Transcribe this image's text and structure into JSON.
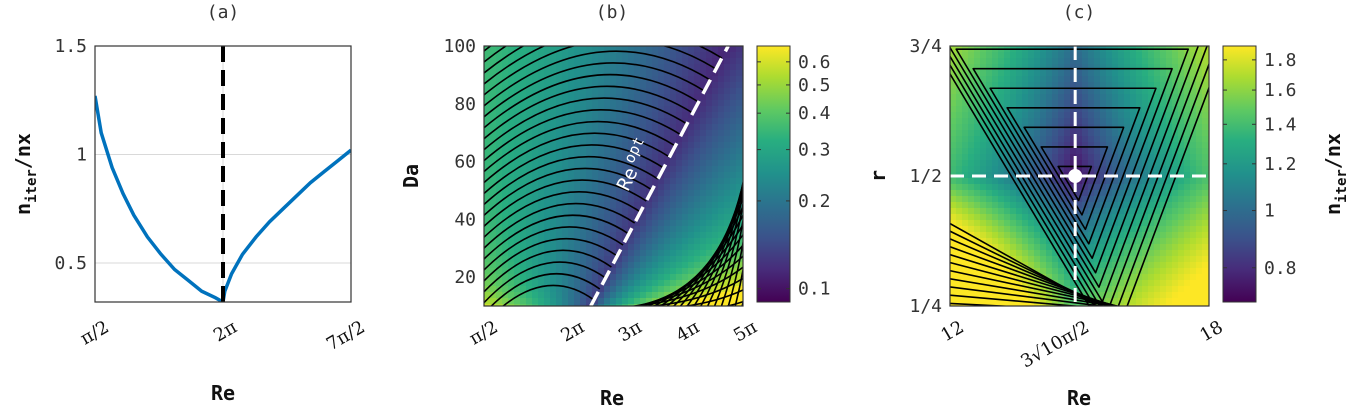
{
  "chart_data": [
    {
      "type": "line",
      "title": "(a)",
      "xlabel": "Re",
      "ylabel_main": "n",
      "ylabel_sub": "iter",
      "ylabel_tail": "/nx",
      "x_tick_labels": [
        "π/2",
        "2π",
        "7π/2"
      ],
      "x_tick_values": [
        1.5708,
        6.2832,
        10.9956
      ],
      "y_tick_labels": [
        "0.5",
        "1",
        "1.5"
      ],
      "y_tick_values": [
        0.5,
        1,
        1.5
      ],
      "xlim": [
        1.5708,
        10.9956
      ],
      "ylim": [
        0.32,
        1.5
      ],
      "grid": true,
      "vline": {
        "x": 6.2832,
        "style": "dashed",
        "color": "#000000"
      },
      "series": [
        {
          "color": "#0072BD",
          "points": [
            [
              1.5708,
              1.27
            ],
            [
              1.8,
              1.1
            ],
            [
              2.2,
              0.94
            ],
            [
              2.6,
              0.82
            ],
            [
              3.0,
              0.72
            ],
            [
              3.5,
              0.62
            ],
            [
              4.0,
              0.54
            ],
            [
              4.5,
              0.47
            ],
            [
              5.0,
              0.42
            ],
            [
              5.5,
              0.37
            ],
            [
              6.0,
              0.34
            ],
            [
              6.2832,
              0.32
            ],
            [
              6.35,
              0.37
            ],
            [
              6.6,
              0.45
            ],
            [
              7.0,
              0.54
            ],
            [
              7.5,
              0.62
            ],
            [
              8.0,
              0.69
            ],
            [
              8.5,
              0.75
            ],
            [
              9.0,
              0.81
            ],
            [
              9.5,
              0.87
            ],
            [
              10.0,
              0.92
            ],
            [
              10.5,
              0.97
            ],
            [
              10.9956,
              1.02
            ]
          ]
        }
      ]
    },
    {
      "type": "heatmap",
      "title": "(b)",
      "xlabel": "Re",
      "ylabel": "Da",
      "x_tick_labels": [
        "π/2",
        "2π",
        "3π",
        "4π",
        "5π"
      ],
      "x_tick_values": [
        1.5708,
        6.2832,
        9.4248,
        12.5664,
        15.708
      ],
      "y_tick_labels": [
        "20",
        "40",
        "60",
        "80",
        "100"
      ],
      "y_tick_values": [
        20,
        40,
        60,
        80,
        100
      ],
      "xlim": [
        1.5708,
        15.708
      ],
      "ylim": [
        10,
        100
      ],
      "colorbar_tick_labels": [
        "0.1",
        "0.2",
        "0.3",
        "0.4",
        "0.5",
        "0.6"
      ],
      "colorbar_tick_values": [
        0.1,
        0.2,
        0.3,
        0.4,
        0.5,
        0.6
      ],
      "colorbar_range": [
        0.09,
        0.68
      ],
      "colorbar_scale": "log",
      "annotation": {
        "text": "Re",
        "sup": "opt"
      },
      "optimal_line": {
        "color": "#ffffff",
        "style": "dashed",
        "points": [
          [
            7.4,
            10
          ],
          [
            14.9,
            100
          ]
        ]
      }
    },
    {
      "type": "heatmap",
      "title": "(c)",
      "xlabel": "Re",
      "ylabel": "r",
      "x_tick_labels": [
        "12",
        "3√10π/2",
        "18"
      ],
      "x_tick_values": [
        12,
        14.9,
        18
      ],
      "y_tick_labels": [
        "1/4",
        "1/2",
        "3/4"
      ],
      "y_tick_values": [
        0.25,
        0.5,
        0.75
      ],
      "xlim": [
        12,
        18
      ],
      "ylim": [
        0.25,
        0.75
      ],
      "colorbar_label_main": "n",
      "colorbar_label_sub": "iter",
      "colorbar_label_tail": "/nx",
      "colorbar_tick_labels": [
        "0.8",
        "1",
        "1.2",
        "1.4",
        "1.6",
        "1.8"
      ],
      "colorbar_tick_values": [
        0.8,
        1.0,
        1.2,
        1.4,
        1.6,
        1.8
      ],
      "colorbar_range": [
        0.7,
        1.9
      ],
      "colorbar_scale": "log",
      "optimum": {
        "x": 14.9,
        "y": 0.5
      }
    }
  ]
}
